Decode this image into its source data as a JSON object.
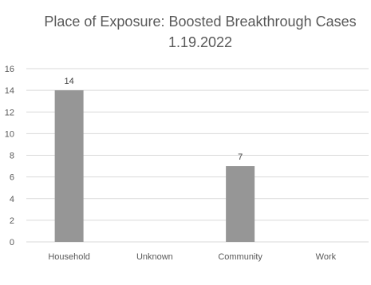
{
  "chart_data": {
    "type": "bar",
    "title_lines": [
      "Place of Exposure: Boosted Breakthrough Cases",
      "1.19.2022"
    ],
    "categories": [
      "Household",
      "Unknown",
      "Community",
      "Work"
    ],
    "values": [
      14,
      0,
      7,
      0
    ],
    "data_labels": [
      "14",
      "",
      "7",
      ""
    ],
    "xlabel": "",
    "ylabel": "",
    "ylim": [
      0,
      16
    ],
    "yticks": [
      0,
      2,
      4,
      6,
      8,
      10,
      12,
      14,
      16
    ],
    "grid": true,
    "legend": "none",
    "bar_color": "#969696",
    "grid_color": "#d9d9d9",
    "text_color": "#595959"
  }
}
